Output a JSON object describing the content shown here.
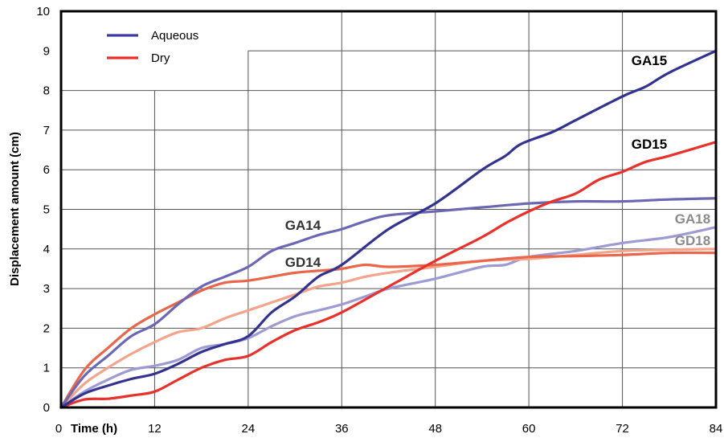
{
  "chart_data": {
    "type": "line",
    "xlabel": "Time (h)",
    "ylabel": "Displacement amount (cm)",
    "xlim": [
      0,
      84
    ],
    "ylim": [
      0,
      10
    ],
    "x_ticks": [
      0,
      12,
      24,
      36,
      48,
      60,
      72,
      84
    ],
    "y_ticks": [
      0,
      1,
      2,
      3,
      4,
      5,
      6,
      7,
      8,
      9,
      10
    ],
    "legend": {
      "placement": "top-left",
      "entries": [
        {
          "label": "Aqueous",
          "color": "#3a3a9a"
        },
        {
          "label": "Dry",
          "color": "#e8312a"
        }
      ]
    },
    "series": [
      {
        "name": "GA15",
        "color": "#33338f",
        "label_color": "#000000",
        "x": [
          0,
          3,
          6,
          9,
          12,
          15,
          18,
          21,
          24,
          27,
          30,
          33,
          36,
          42,
          48,
          54,
          57,
          59,
          63,
          66,
          72,
          75,
          78,
          84
        ],
        "y": [
          0,
          0.35,
          0.55,
          0.72,
          0.85,
          1.1,
          1.4,
          1.6,
          1.8,
          2.4,
          2.8,
          3.3,
          3.6,
          4.5,
          5.15,
          6.0,
          6.35,
          6.65,
          6.95,
          7.25,
          7.85,
          8.1,
          8.45,
          9.0
        ]
      },
      {
        "name": "GD15",
        "color": "#e8312a",
        "label_color": "#000000",
        "x": [
          0,
          3,
          6,
          9,
          12,
          15,
          18,
          21,
          24,
          27,
          30,
          33,
          36,
          42,
          48,
          54,
          57,
          60,
          63,
          66,
          69,
          72,
          75,
          78,
          84
        ],
        "y": [
          0,
          0.2,
          0.22,
          0.3,
          0.4,
          0.7,
          1.0,
          1.2,
          1.3,
          1.65,
          1.95,
          2.15,
          2.4,
          3.05,
          3.7,
          4.3,
          4.65,
          4.95,
          5.2,
          5.4,
          5.75,
          5.95,
          6.2,
          6.35,
          6.7
        ]
      },
      {
        "name": "GA14",
        "color": "#6b67b5",
        "label_color": "#333333",
        "x": [
          0,
          3,
          6,
          9,
          12,
          15,
          18,
          21,
          24,
          27,
          30,
          33,
          36,
          39,
          42,
          48,
          54,
          60,
          66,
          72,
          78,
          84
        ],
        "y": [
          0,
          0.8,
          1.3,
          1.8,
          2.1,
          2.6,
          3.05,
          3.3,
          3.55,
          3.95,
          4.15,
          4.35,
          4.5,
          4.7,
          4.85,
          4.95,
          5.05,
          5.15,
          5.2,
          5.2,
          5.25,
          5.28
        ]
      },
      {
        "name": "GD14",
        "color": "#e8674a",
        "label_color": "#333333",
        "x": [
          0,
          3,
          6,
          9,
          12,
          15,
          18,
          21,
          24,
          27,
          30,
          33,
          36,
          39,
          42,
          48,
          54,
          60,
          66,
          72,
          78,
          84
        ],
        "y": [
          0,
          0.95,
          1.5,
          2.0,
          2.35,
          2.65,
          2.95,
          3.15,
          3.2,
          3.3,
          3.4,
          3.45,
          3.5,
          3.6,
          3.55,
          3.6,
          3.7,
          3.8,
          3.82,
          3.85,
          3.9,
          3.9
        ]
      },
      {
        "name": "GA18",
        "color": "#9e9ad3",
        "label_color": "#8a8a8a",
        "x": [
          0,
          3,
          6,
          9,
          12,
          15,
          18,
          21,
          24,
          27,
          30,
          33,
          36,
          39,
          42,
          48,
          54,
          57,
          60,
          66,
          72,
          78,
          84
        ],
        "y": [
          0,
          0.4,
          0.7,
          0.95,
          1.05,
          1.2,
          1.5,
          1.6,
          1.75,
          2.05,
          2.3,
          2.45,
          2.6,
          2.8,
          3.0,
          3.25,
          3.55,
          3.6,
          3.8,
          3.95,
          4.15,
          4.3,
          4.55
        ]
      },
      {
        "name": "GD18",
        "color": "#f2a48c",
        "label_color": "#8a8a8a",
        "x": [
          0,
          3,
          6,
          9,
          12,
          15,
          18,
          21,
          24,
          27,
          30,
          33,
          36,
          39,
          42,
          48,
          54,
          60,
          66,
          72,
          78,
          84
        ],
        "y": [
          0,
          0.6,
          1.0,
          1.35,
          1.65,
          1.9,
          2.0,
          2.25,
          2.45,
          2.65,
          2.85,
          3.05,
          3.15,
          3.3,
          3.4,
          3.55,
          3.7,
          3.75,
          3.85,
          3.95,
          3.98,
          4.0
        ]
      }
    ]
  }
}
